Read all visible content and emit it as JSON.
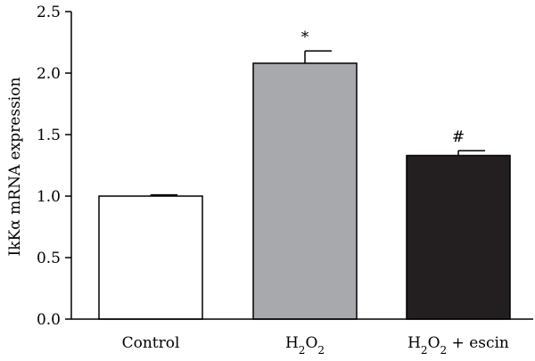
{
  "chart_data": {
    "type": "bar",
    "ylabel": "IkKα mRNA expression",
    "ylim": [
      0,
      2.5
    ],
    "yticks": [
      "0.0",
      "0.5",
      "1.0",
      "1.5",
      "2.0",
      "2.5"
    ],
    "categories": [
      {
        "name": "Control",
        "parts": [
          {
            "t": "Control"
          }
        ]
      },
      {
        "name": "H2O2",
        "parts": [
          {
            "t": "H"
          },
          {
            "t": "2",
            "sub": true
          },
          {
            "t": "O"
          },
          {
            "t": "2",
            "sub": true
          }
        ]
      },
      {
        "name": "H2O2 + escin",
        "parts": [
          {
            "t": "H"
          },
          {
            "t": "2",
            "sub": true
          },
          {
            "t": "O"
          },
          {
            "t": "2",
            "sub": true
          },
          {
            "t": " + escin"
          }
        ]
      }
    ],
    "values": [
      1.0,
      2.08,
      1.33
    ],
    "errors": [
      0.01,
      0.1,
      0.04
    ],
    "annotations": [
      "",
      "*",
      "#"
    ],
    "colors": [
      "#ffffff",
      "#a7a9ac",
      "#231f20"
    ]
  }
}
